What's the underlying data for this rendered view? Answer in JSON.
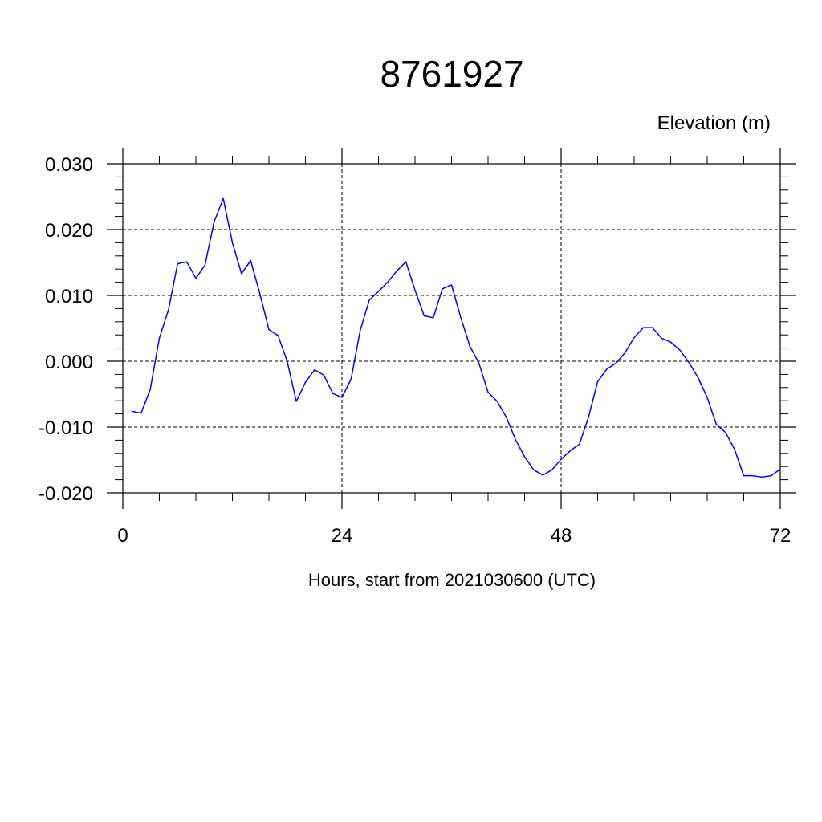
{
  "chart_data": {
    "type": "line",
    "title": "8761927",
    "ylabel": "Elevation (m)",
    "xlabel": "Hours, start from 2021030600 (UTC)",
    "xlim": [
      0,
      72
    ],
    "ylim": [
      -0.02,
      0.03
    ],
    "x_ticks": [
      0,
      24,
      48,
      72
    ],
    "x_tick_labels": [
      "0",
      "24",
      "48",
      "72"
    ],
    "y_ticks": [
      -0.02,
      -0.01,
      0.0,
      0.01,
      0.02,
      0.03
    ],
    "y_tick_labels": [
      "-0.020",
      "-0.010",
      "0.000",
      "0.010",
      "0.020",
      "0.030"
    ],
    "grid": true,
    "line_color": "#0000ff",
    "series": [
      {
        "x": [
          1,
          2,
          3,
          4,
          5,
          6,
          7,
          8,
          9,
          10,
          11,
          12,
          13,
          14,
          15,
          16,
          17,
          18,
          19,
          20,
          21,
          22,
          23,
          24,
          25,
          26,
          27,
          28,
          29,
          30,
          31,
          32,
          33,
          34,
          35,
          36,
          37,
          38,
          39,
          40,
          41,
          42,
          43,
          44,
          45,
          46,
          47,
          48,
          49,
          50,
          51,
          52,
          53,
          54,
          55,
          56,
          57,
          58,
          59,
          60,
          61,
          62,
          63,
          64,
          65,
          66,
          67,
          68,
          69,
          70,
          71,
          72
        ],
        "values": [
          -0.0076,
          -0.0079,
          -0.0043,
          0.0035,
          0.0078,
          0.0148,
          0.0151,
          0.0126,
          0.0146,
          0.0212,
          0.0247,
          0.018,
          0.0133,
          0.0153,
          0.0103,
          0.0048,
          0.0039,
          0.0,
          -0.0061,
          -0.0032,
          -0.0013,
          -0.0021,
          -0.0049,
          -0.0055,
          -0.0027,
          0.0047,
          0.0093,
          0.0106,
          0.012,
          0.0137,
          0.0151,
          0.0108,
          0.0069,
          0.0066,
          0.011,
          0.0116,
          0.0067,
          0.0023,
          -0.0003,
          -0.0047,
          -0.0061,
          -0.0085,
          -0.0119,
          -0.0145,
          -0.0165,
          -0.0173,
          -0.0165,
          -0.0149,
          -0.0136,
          -0.0126,
          -0.0085,
          -0.0031,
          -0.0012,
          -0.0003,
          0.0013,
          0.0036,
          0.0051,
          0.0051,
          0.0035,
          0.0029,
          0.0017,
          -0.0002,
          -0.0025,
          -0.0055,
          -0.0096,
          -0.0108,
          -0.0134,
          -0.0174,
          -0.0174,
          -0.0176,
          -0.0174,
          -0.0164
        ]
      }
    ]
  }
}
